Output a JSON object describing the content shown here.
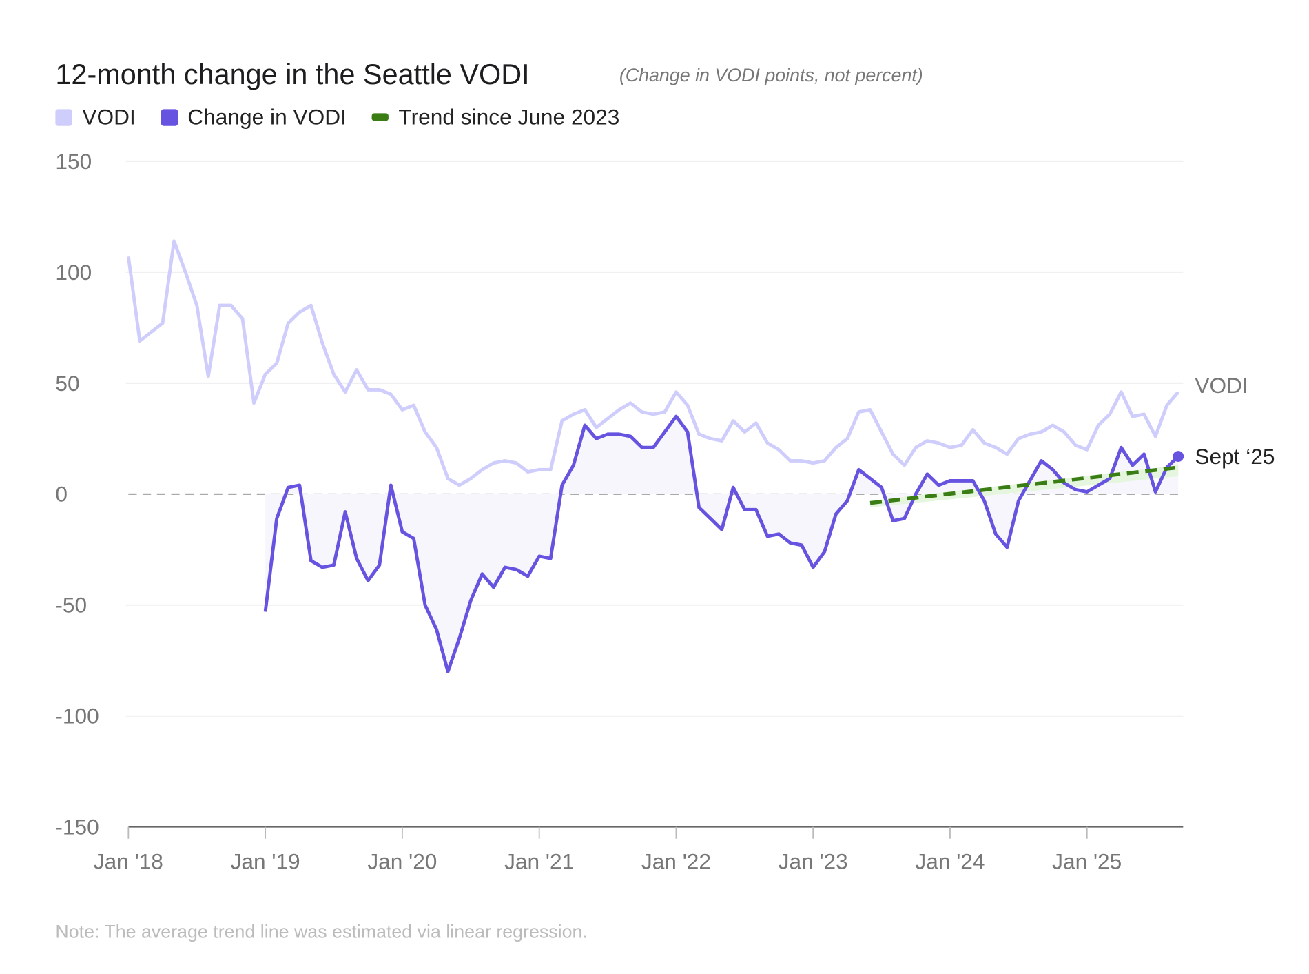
{
  "chart_data": {
    "type": "line",
    "title": "12-month change in the Seattle VODI",
    "subtitle": "(Change in VODI points, not percent)",
    "legend": [
      {
        "label": "VODI",
        "color": "#cfcdfb"
      },
      {
        "label": "Change in VODI",
        "color": "#6653e0"
      },
      {
        "label": "Trend since June 2023",
        "color": "#3a7d14"
      }
    ],
    "x_start": "Jan 2018",
    "x_unit": "month",
    "x_ticks": [
      {
        "i": 0,
        "label": "Jan '18"
      },
      {
        "i": 12,
        "label": "Jan '19"
      },
      {
        "i": 24,
        "label": "Jan '20"
      },
      {
        "i": 36,
        "label": "Jan '21"
      },
      {
        "i": 48,
        "label": "Jan '22"
      },
      {
        "i": 60,
        "label": "Jan '23"
      },
      {
        "i": 72,
        "label": "Jan '24"
      },
      {
        "i": 84,
        "label": "Jan '25"
      }
    ],
    "ylim": [
      -150,
      150
    ],
    "y_ticks": [
      150,
      100,
      50,
      0,
      -50,
      -100,
      -150
    ],
    "series": [
      {
        "name": "VODI",
        "start_index": 0,
        "values": [
          107,
          69,
          73,
          77,
          114,
          100,
          85,
          53,
          85,
          85,
          79,
          41,
          54,
          59,
          77,
          82,
          85,
          68,
          54,
          46,
          56,
          47,
          47,
          45,
          38,
          40,
          28,
          21,
          7,
          4,
          7,
          11,
          14,
          15,
          14,
          10,
          11,
          11,
          33,
          36,
          38,
          30,
          34,
          38,
          41,
          37,
          36,
          37,
          46,
          40,
          27,
          25,
          24,
          33,
          28,
          32,
          23,
          20,
          15,
          15,
          14,
          15,
          21,
          25,
          37,
          38,
          28,
          18,
          13,
          21,
          24,
          23,
          21,
          22,
          29,
          23,
          21,
          18,
          25,
          27,
          28,
          31,
          28,
          22,
          20,
          31,
          36,
          46,
          35,
          36,
          26,
          40,
          46
        ]
      },
      {
        "name": "Change in VODI",
        "start_index": 12,
        "values": [
          -53,
          -11,
          3,
          4,
          -30,
          -33,
          -32,
          -8,
          -29,
          -39,
          -32,
          4,
          -17,
          -20,
          -50,
          -61,
          -80,
          -65,
          -48,
          -36,
          -42,
          -33,
          -34,
          -37,
          -28,
          -29,
          4,
          13,
          31,
          25,
          27,
          27,
          26,
          21,
          21,
          28,
          35,
          28,
          -6,
          -11,
          -16,
          3,
          -7,
          -7,
          -19,
          -18,
          -22,
          -23,
          -33,
          -26,
          -9,
          -3,
          11,
          7,
          3,
          -12,
          -11,
          0,
          9,
          4,
          6,
          6,
          6,
          -3,
          -18,
          -24,
          -3,
          6,
          15,
          11,
          5,
          2,
          1,
          4,
          7,
          21,
          13,
          18,
          1,
          12,
          17
        ]
      }
    ],
    "trend": {
      "name": "Trend since June 2023",
      "start_index": 65,
      "start_value": -4,
      "end_index": 92,
      "end_value": 12
    },
    "end_labels": {
      "vodi": "VODI",
      "change": "Sept ‘25"
    },
    "note": "Note: The average trend line was estimated via linear regression."
  }
}
